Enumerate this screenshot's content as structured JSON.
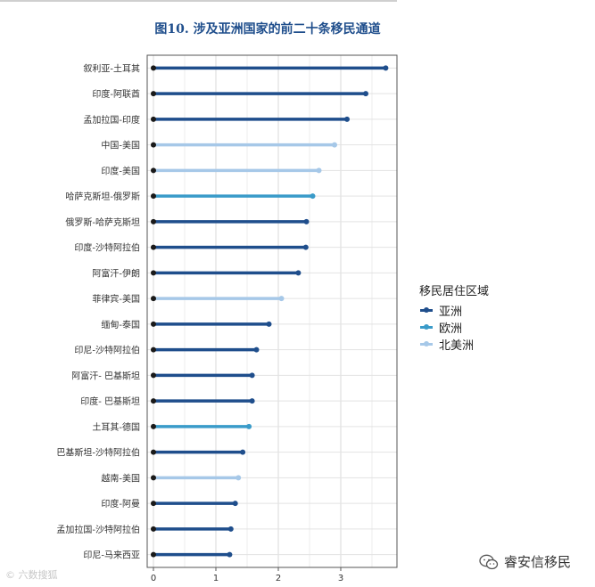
{
  "title": "图10.  涉及亚洲国家的前二十条移民通道",
  "legend": {
    "title": "移民居住区域",
    "items": [
      {
        "label": "亚洲",
        "color": "#1f4e8c"
      },
      {
        "label": "欧洲",
        "color": "#3a9bc9"
      },
      {
        "label": "北美洲",
        "color": "#a6c8e8"
      }
    ]
  },
  "watermark": {
    "left_text": "© 六数搜狐",
    "right_text": "睿安信移民",
    "right_icon": "wechat-icon"
  },
  "chart_data": {
    "type": "lollipop",
    "orientation": "horizontal",
    "xlim": [
      -0.1,
      3.9
    ],
    "xticks": [
      0,
      1,
      2,
      3
    ],
    "grid": true,
    "legend_position": "right",
    "region_colors": {
      "亚洲": "#1f4e8c",
      "欧洲": "#3a9bc9",
      "北美洲": "#a6c8e8"
    },
    "categories": [
      "叙利亚-土耳其",
      "印度-阿联酋",
      "孟加拉国-印度",
      "中国-美国",
      "印度-美国",
      "哈萨克斯坦-俄罗斯",
      "俄罗斯-哈萨克斯坦",
      "印度-沙特阿拉伯",
      "阿富汗-伊朗",
      "菲律宾-美国",
      "缅甸-泰国",
      "印尼-沙特阿拉伯",
      "阿富汗- 巴基斯坦",
      "印度- 巴基斯坦",
      "土耳其-德国",
      "巴基斯坦-沙特阿拉伯",
      "越南-美国",
      "印度-阿曼",
      "孟加拉国-沙特阿拉伯",
      "印尼-马来西亚"
    ],
    "values": [
      3.72,
      3.4,
      3.1,
      2.9,
      2.65,
      2.55,
      2.45,
      2.44,
      2.32,
      2.05,
      1.85,
      1.65,
      1.58,
      1.58,
      1.53,
      1.43,
      1.36,
      1.31,
      1.24,
      1.22
    ],
    "regions": [
      "亚洲",
      "亚洲",
      "亚洲",
      "北美洲",
      "北美洲",
      "欧洲",
      "亚洲",
      "亚洲",
      "亚洲",
      "北美洲",
      "亚洲",
      "亚洲",
      "亚洲",
      "亚洲",
      "欧洲",
      "亚洲",
      "北美洲",
      "亚洲",
      "亚洲",
      "亚洲"
    ]
  }
}
